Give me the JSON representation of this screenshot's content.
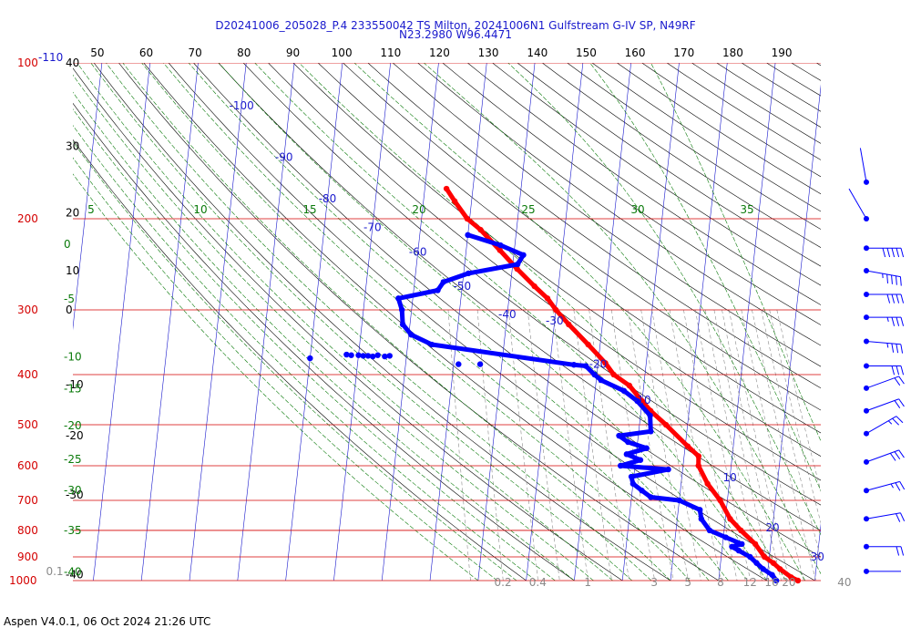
{
  "header": {
    "title_line1": "D20241006_205028_P.4 233550042 TS Milton, 20241006N1 Gulfstream G-IV SP, N49RF",
    "title_line2": "N23.2980 W96.4471"
  },
  "footer": {
    "text": "Aspen V4.0.1, 06 Oct 2024  21:26 UTC"
  },
  "colors": {
    "isobar": "#d40000",
    "isotherm": "#1a1acd",
    "dry_adiabat": "#000000",
    "moist_adiabat": "#0a7a0a",
    "mixing_ratio": "#8a8a8a",
    "temperature_trace": "#ff0000",
    "dewpoint_trace": "#0000ff"
  },
  "chart_data": {
    "type": "line",
    "chart_kind": "Skew-T log-P sounding",
    "y_scale": "log",
    "pressure_range_hpa": [
      100,
      1000
    ],
    "pressure_labels": [
      {
        "p": 100,
        "text": "100"
      },
      {
        "p": 200,
        "text": "200"
      },
      {
        "p": 300,
        "text": "300"
      },
      {
        "p": 400,
        "text": "400"
      },
      {
        "p": 500,
        "text": "500"
      },
      {
        "p": 600,
        "text": "600"
      },
      {
        "p": 700,
        "text": "700"
      },
      {
        "p": 800,
        "text": "800"
      },
      {
        "p": 900,
        "text": "900"
      },
      {
        "p": 1000,
        "text": "1000"
      }
    ],
    "isobar_extra_label": "-110",
    "height_labels": [
      {
        "p": 100,
        "text": "40"
      },
      {
        "p": 145,
        "text": "30"
      },
      {
        "p": 195,
        "text": "20"
      },
      {
        "p": 252,
        "text": "10"
      },
      {
        "p": 300,
        "text": "0"
      },
      {
        "p": 418,
        "text": "-10"
      },
      {
        "p": 525,
        "text": "-20"
      },
      {
        "p": 683,
        "text": "-30"
      },
      {
        "p": 974,
        "text": "-40"
      }
    ],
    "theta_e_labels": [
      {
        "p": 224,
        "text": "0"
      },
      {
        "p": 286,
        "text": "-5"
      },
      {
        "p": 370,
        "text": "-10"
      },
      {
        "p": 426,
        "text": "-15"
      },
      {
        "p": 502,
        "text": "-20"
      },
      {
        "p": 583,
        "text": "-25"
      },
      {
        "p": 670,
        "text": "-30"
      },
      {
        "p": 800,
        "text": "-35"
      },
      {
        "p": 963,
        "text": "-40"
      }
    ],
    "top_axis_labels": [
      "50",
      "60",
      "70",
      "80",
      "90",
      "100",
      "110",
      "120",
      "130",
      "140",
      "150",
      "160",
      "170",
      "180",
      "190"
    ],
    "top_axis_range": [
      45,
      198
    ],
    "moist_labels": [
      {
        "temp": 5,
        "text": "5"
      },
      {
        "temp": 10,
        "text": "10"
      },
      {
        "temp": 15,
        "text": "15"
      },
      {
        "temp": 20,
        "text": "20"
      },
      {
        "temp": 25,
        "text": "25"
      },
      {
        "temp": 30,
        "text": "30"
      },
      {
        "temp": 35,
        "text": "35"
      }
    ],
    "isotherm_labels": [
      {
        "temp": -100,
        "p": 121,
        "text": "-100"
      },
      {
        "temp": -90,
        "p": 152,
        "text": "-90"
      },
      {
        "temp": -80,
        "p": 183,
        "text": "-80"
      },
      {
        "temp": -70,
        "p": 208,
        "text": "-70"
      },
      {
        "temp": -60,
        "p": 232,
        "text": "-60"
      },
      {
        "temp": -50,
        "p": 270,
        "text": "-50"
      },
      {
        "temp": -40,
        "p": 306,
        "text": "-40"
      },
      {
        "temp": -30,
        "p": 315,
        "text": "-30"
      },
      {
        "temp": -20,
        "p": 382,
        "text": "-20"
      },
      {
        "temp": -10,
        "p": 448,
        "text": "-10"
      },
      {
        "temp": 10,
        "p": 633,
        "text": "10"
      },
      {
        "temp": 20,
        "p": 790,
        "text": "20"
      },
      {
        "temp": 30,
        "p": 900,
        "text": "30"
      }
    ],
    "mixing_ratio_labels": [
      {
        "value": 0.1,
        "text": "0.1"
      },
      {
        "value": 0.2,
        "text": "0.2"
      },
      {
        "value": 0.4,
        "text": "0.4"
      },
      {
        "value": 1,
        "text": "1"
      },
      {
        "value": 3,
        "text": "3"
      },
      {
        "value": 5,
        "text": "5"
      },
      {
        "value": 8,
        "text": "8"
      },
      {
        "value": 12,
        "text": "12"
      },
      {
        "value": 16,
        "text": "16"
      },
      {
        "value": 20,
        "text": "20"
      },
      {
        "value": 40,
        "text": "40"
      }
    ],
    "series": [
      {
        "name": "Temperature",
        "points": [
          {
            "p": 1000,
            "t": 26.5
          },
          {
            "p": 985,
            "t": 25.0
          },
          {
            "p": 950,
            "t": 22.5
          },
          {
            "p": 925,
            "t": 21.0
          },
          {
            "p": 900,
            "t": 19.0
          },
          {
            "p": 850,
            "t": 16.8
          },
          {
            "p": 800,
            "t": 13.5
          },
          {
            "p": 760,
            "t": 11.0
          },
          {
            "p": 700,
            "t": 8.5
          },
          {
            "p": 650,
            "t": 5.5
          },
          {
            "p": 600,
            "t": 3.2
          },
          {
            "p": 575,
            "t": 3.0
          },
          {
            "p": 550,
            "t": 0.5
          },
          {
            "p": 500,
            "t": -4.5
          },
          {
            "p": 470,
            "t": -8.0
          },
          {
            "p": 450,
            "t": -10.0
          },
          {
            "p": 420,
            "t": -13.0
          },
          {
            "p": 400,
            "t": -16.5
          },
          {
            "p": 380,
            "t": -18.5
          },
          {
            "p": 350,
            "t": -22.5
          },
          {
            "p": 320,
            "t": -27.0
          },
          {
            "p": 300,
            "t": -30.0
          },
          {
            "p": 285,
            "t": -32.0
          },
          {
            "p": 270,
            "t": -35.0
          },
          {
            "p": 250,
            "t": -39.0
          },
          {
            "p": 230,
            "t": -43.0
          },
          {
            "p": 210,
            "t": -47.5
          },
          {
            "p": 200,
            "t": -50.5
          },
          {
            "p": 185,
            "t": -53.5
          },
          {
            "p": 175,
            "t": -55.5
          }
        ]
      },
      {
        "name": "Dewpoint",
        "points": [
          {
            "p": 1000,
            "t": 22.0
          },
          {
            "p": 975,
            "t": 21.0
          },
          {
            "p": 950,
            "t": 19.0
          },
          {
            "p": 925,
            "t": 17.5
          },
          {
            "p": 900,
            "t": 16.0
          },
          {
            "p": 875,
            "t": 13.5
          },
          {
            "p": 860,
            "t": 12.0
          },
          {
            "p": 850,
            "t": 14.0
          },
          {
            "p": 825,
            "t": 10.5
          },
          {
            "p": 800,
            "t": 7.0
          },
          {
            "p": 760,
            "t": 5.0
          },
          {
            "p": 730,
            "t": 4.5
          },
          {
            "p": 700,
            "t": 0.0
          },
          {
            "p": 690,
            "t": -6.0
          },
          {
            "p": 670,
            "t": -8.0
          },
          {
            "p": 650,
            "t": -10.0
          },
          {
            "p": 630,
            "t": -10.5
          },
          {
            "p": 610,
            "t": -3.0
          },
          {
            "p": 600,
            "t": -13.0
          },
          {
            "p": 585,
            "t": -9.0
          },
          {
            "p": 570,
            "t": -12.0
          },
          {
            "p": 555,
            "t": -8.0
          },
          {
            "p": 540,
            "t": -12.0
          },
          {
            "p": 525,
            "t": -14.0
          },
          {
            "p": 515,
            "t": -7.5
          },
          {
            "p": 480,
            "t": -8.0
          },
          {
            "p": 450,
            "t": -11.0
          },
          {
            "p": 430,
            "t": -14.0
          },
          {
            "p": 410,
            "t": -19.0
          },
          {
            "p": 400,
            "t": -20.5
          },
          {
            "p": 385,
            "t": -22.5
          },
          {
            "p": 383,
            "t": -25.0
          },
          {
            "p": 350,
            "t": -55.0
          },
          {
            "p": 335,
            "t": -59.5
          },
          {
            "p": 320,
            "t": -61.5
          },
          {
            "p": 300,
            "t": -62.0
          },
          {
            "p": 285,
            "t": -63.0
          },
          {
            "p": 275,
            "t": -55.0
          },
          {
            "p": 265,
            "t": -54.0
          },
          {
            "p": 255,
            "t": -49.0
          },
          {
            "p": 245,
            "t": -39.0
          },
          {
            "p": 235,
            "t": -38.0
          },
          {
            "p": 225,
            "t": -43.0
          },
          {
            "p": 215,
            "t": -50.0
          }
        ]
      },
      {
        "name": "Dewpoint (scattered)",
        "points": [
          {
            "p": 372,
            "t": -80.0
          },
          {
            "p": 366,
            "t": -72.5
          },
          {
            "p": 367,
            "t": -71.5
          },
          {
            "p": 367,
            "t": -70.0
          },
          {
            "p": 368,
            "t": -69.0
          },
          {
            "p": 368,
            "t": -68.0
          },
          {
            "p": 369,
            "t": -67.0
          },
          {
            "p": 367,
            "t": -66.0
          },
          {
            "p": 369,
            "t": -64.5
          },
          {
            "p": 368,
            "t": -63.5
          },
          {
            "p": 382,
            "t": -49.0
          },
          {
            "p": 382,
            "t": -44.5
          }
        ]
      }
    ],
    "wind_barbs": [
      {
        "p": 170,
        "dir": 350,
        "kt": 0
      },
      {
        "p": 200,
        "dir": 330,
        "kt": 0
      },
      {
        "p": 228,
        "dir": 90,
        "kt": 50
      },
      {
        "p": 252,
        "dir": 100,
        "kt": 45
      },
      {
        "p": 280,
        "dir": 90,
        "kt": 40
      },
      {
        "p": 310,
        "dir": 90,
        "kt": 35
      },
      {
        "p": 345,
        "dir": 95,
        "kt": 35
      },
      {
        "p": 385,
        "dir": 90,
        "kt": 30
      },
      {
        "p": 425,
        "dir": 70,
        "kt": 20
      },
      {
        "p": 470,
        "dir": 70,
        "kt": 20
      },
      {
        "p": 520,
        "dir": 60,
        "kt": 25
      },
      {
        "p": 590,
        "dir": 70,
        "kt": 30
      },
      {
        "p": 670,
        "dir": 75,
        "kt": 25
      },
      {
        "p": 760,
        "dir": 80,
        "kt": 20
      },
      {
        "p": 860,
        "dir": 90,
        "kt": 20
      },
      {
        "p": 960,
        "dir": 90,
        "kt": 0
      }
    ]
  }
}
